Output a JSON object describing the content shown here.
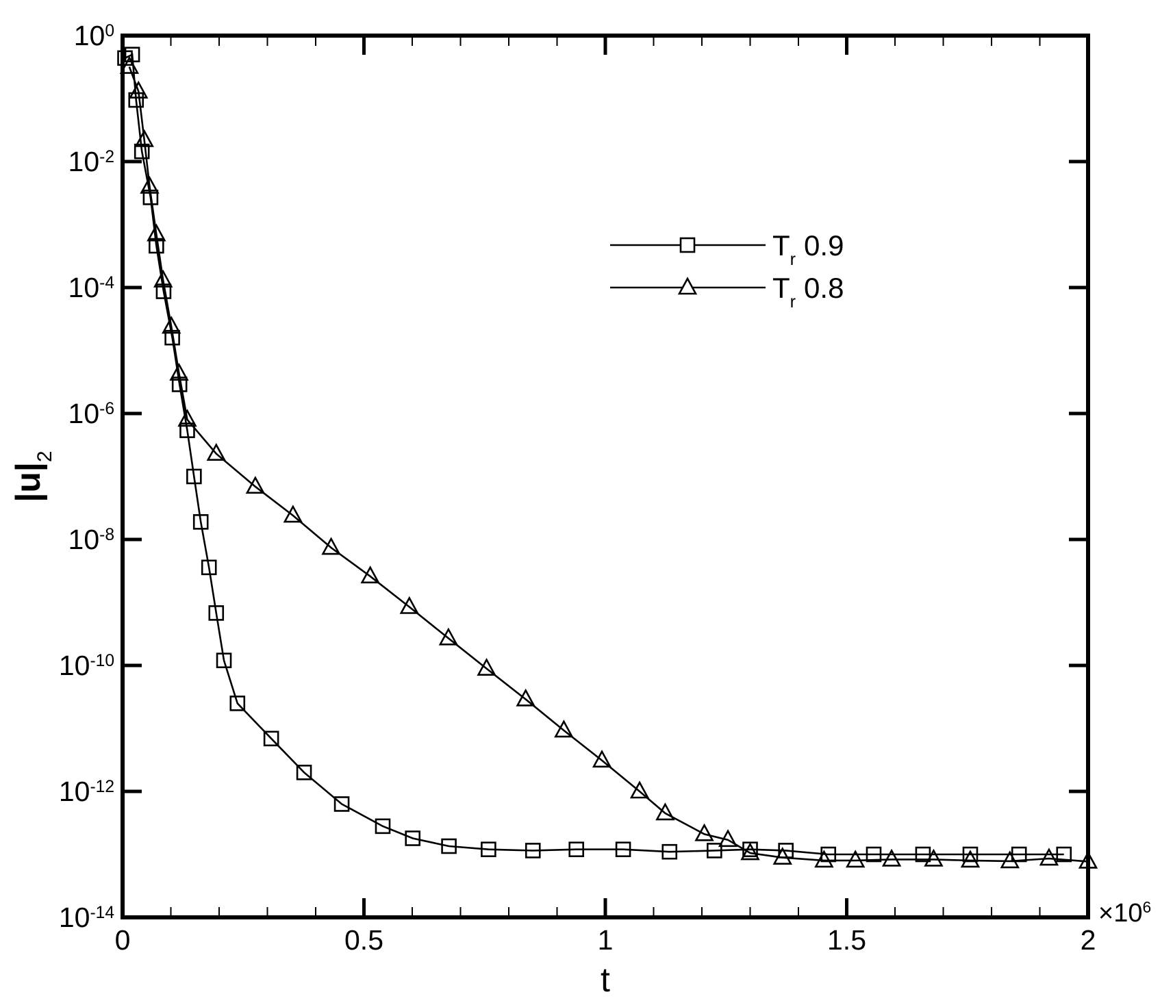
{
  "chart_data": {
    "type": "line",
    "xlabel": "t",
    "ylabel": {
      "text": "|u|",
      "subscript": "2"
    },
    "x_multiplier": {
      "label": "×10",
      "exponent": "6"
    },
    "xlim": [
      0,
      2
    ],
    "xticks": [
      0,
      0.5,
      1,
      1.5,
      2
    ],
    "xminorticks": [
      0.1,
      0.2,
      0.3,
      0.4,
      0.6,
      0.7,
      0.8,
      0.9,
      1.1,
      1.2,
      1.3,
      1.4,
      1.6,
      1.7,
      1.8,
      1.9
    ],
    "yscale": "log",
    "ylim": [
      1e-14,
      1
    ],
    "yticks": [
      {
        "value": 1,
        "label": "10",
        "exponent": "0"
      },
      {
        "value": 0.01,
        "label": "10",
        "exponent": "-2"
      },
      {
        "value": 0.0001,
        "label": "10",
        "exponent": "-4"
      },
      {
        "value": 1e-06,
        "label": "10",
        "exponent": "-6"
      },
      {
        "value": 1e-08,
        "label": "10",
        "exponent": "-8"
      },
      {
        "value": 1e-10,
        "label": "10",
        "exponent": "-10"
      },
      {
        "value": 1e-12,
        "label": "10",
        "exponent": "-12"
      },
      {
        "value": 1e-14,
        "label": "10",
        "exponent": "-14"
      }
    ],
    "series": [
      {
        "name": {
          "symbol": "T",
          "subscript": "r",
          "value": "0.9"
        },
        "marker": "square",
        "color": "#000000",
        "x": [
          0.005,
          0.02,
          0.028,
          0.04,
          0.058,
          0.07,
          0.085,
          0.103,
          0.118,
          0.134,
          0.148,
          0.162,
          0.179,
          0.194,
          0.21,
          0.238,
          0.308,
          0.376,
          0.454,
          0.539,
          0.601,
          0.676,
          0.758,
          0.85,
          0.94,
          1.037,
          1.133,
          1.226,
          1.3,
          1.374,
          1.462,
          1.556,
          1.658,
          1.756,
          1.857,
          1.95
        ],
        "values": [
          0.44,
          0.5,
          0.095,
          0.0145,
          0.0027,
          0.00046,
          8.7e-05,
          1.6e-05,
          2.9e-06,
          5.4e-07,
          1e-07,
          1.9e-08,
          3.6e-09,
          6.8e-10,
          1.2e-10,
          2.5e-11,
          6.9e-12,
          2e-12,
          6.3e-13,
          2.8e-13,
          1.8e-13,
          1.35e-13,
          1.2e-13,
          1.15e-13,
          1.2e-13,
          1.2e-13,
          1.1e-13,
          1.15e-13,
          1.2e-13,
          1.15e-13,
          1e-13,
          1e-13,
          1e-13,
          1e-13,
          1e-13,
          1e-13
        ]
      },
      {
        "name": {
          "symbol": "T",
          "subscript": "r",
          "value": "0.8"
        },
        "marker": "triangle",
        "color": "#000000",
        "x": [
          0.014,
          0.033,
          0.045,
          0.056,
          0.07,
          0.084,
          0.101,
          0.117,
          0.134,
          0.194,
          0.275,
          0.353,
          0.432,
          0.513,
          0.594,
          0.675,
          0.754,
          0.835,
          0.914,
          0.993,
          1.071,
          1.124,
          1.205,
          1.254,
          1.3,
          1.367,
          1.453,
          1.518,
          1.593,
          1.68,
          1.756,
          1.838,
          1.919,
          2.0
        ],
        "values": [
          0.32,
          0.13,
          0.022,
          0.004,
          0.0007,
          0.00013,
          2.4e-05,
          4.3e-06,
          8e-07,
          2.3e-07,
          6.9e-08,
          2.4e-08,
          7.4e-09,
          2.6e-09,
          8.5e-10,
          2.7e-10,
          8.9e-11,
          2.9e-11,
          9.3e-12,
          3.1e-12,
          1e-12,
          4.5e-13,
          2.1e-13,
          1.7e-13,
          1.05e-13,
          8.9e-14,
          8e-14,
          8e-14,
          8.3e-14,
          8.3e-14,
          8e-14,
          7.8e-14,
          8.6e-14,
          7.7e-14
        ]
      }
    ]
  }
}
